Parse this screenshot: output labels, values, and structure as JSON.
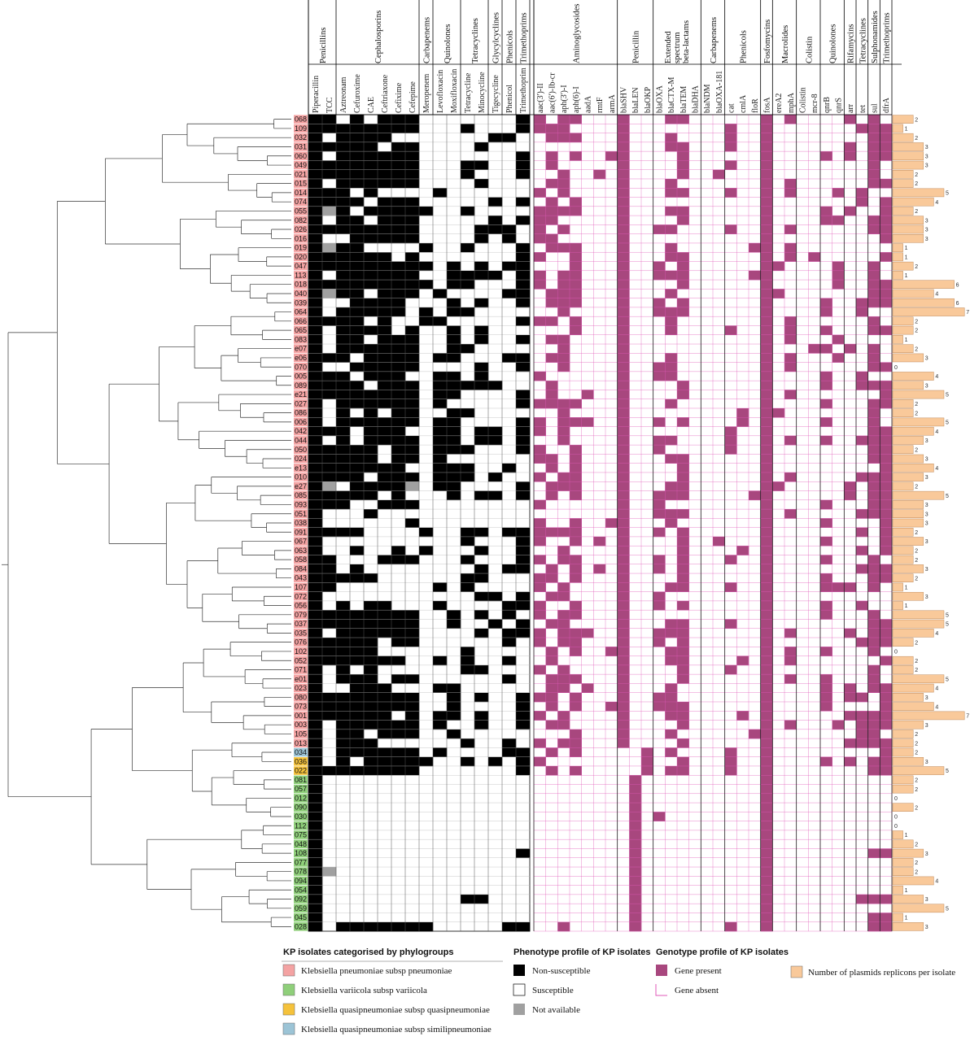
{
  "isolates": [
    {
      "id": "068",
      "group": "kp",
      "plasmids": 2
    },
    {
      "id": "109",
      "group": "kp",
      "plasmids": 1
    },
    {
      "id": "032",
      "group": "kp",
      "plasmids": 2
    },
    {
      "id": "031",
      "group": "kp",
      "plasmids": 3
    },
    {
      "id": "060",
      "group": "kp",
      "plasmids": 3
    },
    {
      "id": "049",
      "group": "kp",
      "plasmids": 3
    },
    {
      "id": "021",
      "group": "kp",
      "plasmids": 2
    },
    {
      "id": "015",
      "group": "kp",
      "plasmids": 2
    },
    {
      "id": "014",
      "group": "kp",
      "plasmids": 5
    },
    {
      "id": "074",
      "group": "kp",
      "plasmids": 4
    },
    {
      "id": "055",
      "group": "kp",
      "plasmids": 2
    },
    {
      "id": "082",
      "group": "kp",
      "plasmids": 3
    },
    {
      "id": "026",
      "group": "kp",
      "plasmids": 3
    },
    {
      "id": "016",
      "group": "kp",
      "plasmids": 3
    },
    {
      "id": "019",
      "group": "kp",
      "plasmids": 1
    },
    {
      "id": "020",
      "group": "kp",
      "plasmids": 1
    },
    {
      "id": "047",
      "group": "kp",
      "plasmids": 2
    },
    {
      "id": "113",
      "group": "kp",
      "plasmids": 1
    },
    {
      "id": "018",
      "group": "kp",
      "plasmids": 6
    },
    {
      "id": "040",
      "group": "kp",
      "plasmids": 4
    },
    {
      "id": "039",
      "group": "kp",
      "plasmids": 6
    },
    {
      "id": "064",
      "group": "kp",
      "plasmids": 7
    },
    {
      "id": "066",
      "group": "kp",
      "plasmids": 2
    },
    {
      "id": "065",
      "group": "kp",
      "plasmids": 2
    },
    {
      "id": "083",
      "group": "kp",
      "plasmids": 1
    },
    {
      "id": "e07",
      "group": "kp",
      "plasmids": 2
    },
    {
      "id": "e06",
      "group": "kp",
      "plasmids": 3
    },
    {
      "id": "070",
      "group": "kp",
      "plasmids": 0
    },
    {
      "id": "005",
      "group": "kp",
      "plasmids": 4
    },
    {
      "id": "089",
      "group": "kp",
      "plasmids": 3
    },
    {
      "id": "e21",
      "group": "kp",
      "plasmids": 5
    },
    {
      "id": "027",
      "group": "kp",
      "plasmids": 2
    },
    {
      "id": "086",
      "group": "kp",
      "plasmids": 2
    },
    {
      "id": "006",
      "group": "kp",
      "plasmids": 5
    },
    {
      "id": "042",
      "group": "kp",
      "plasmids": 4
    },
    {
      "id": "044",
      "group": "kp",
      "plasmids": 3
    },
    {
      "id": "050",
      "group": "kp",
      "plasmids": 2
    },
    {
      "id": "024",
      "group": "kp",
      "plasmids": 3
    },
    {
      "id": "e13",
      "group": "kp",
      "plasmids": 4
    },
    {
      "id": "010",
      "group": "kp",
      "plasmids": 3
    },
    {
      "id": "e27",
      "group": "kp",
      "plasmids": 2
    },
    {
      "id": "085",
      "group": "kp",
      "plasmids": 5
    },
    {
      "id": "093",
      "group": "kp",
      "plasmids": 3
    },
    {
      "id": "051",
      "group": "kp",
      "plasmids": 3
    },
    {
      "id": "038",
      "group": "kp",
      "plasmids": 3
    },
    {
      "id": "091",
      "group": "kp",
      "plasmids": 2
    },
    {
      "id": "067",
      "group": "kp",
      "plasmids": 3
    },
    {
      "id": "063",
      "group": "kp",
      "plasmids": 2
    },
    {
      "id": "058",
      "group": "kp",
      "plasmids": 2
    },
    {
      "id": "084",
      "group": "kp",
      "plasmids": 3
    },
    {
      "id": "043",
      "group": "kp",
      "plasmids": 2
    },
    {
      "id": "107",
      "group": "kp",
      "plasmids": 1
    },
    {
      "id": "072",
      "group": "kp",
      "plasmids": 3
    },
    {
      "id": "056",
      "group": "kp",
      "plasmids": 1
    },
    {
      "id": "079",
      "group": "kp",
      "plasmids": 5
    },
    {
      "id": "037",
      "group": "kp",
      "plasmids": 5
    },
    {
      "id": "035",
      "group": "kp",
      "plasmids": 4
    },
    {
      "id": "076",
      "group": "kp",
      "plasmids": 2
    },
    {
      "id": "102",
      "group": "kp",
      "plasmids": 0
    },
    {
      "id": "052",
      "group": "kp",
      "plasmids": 2
    },
    {
      "id": "071",
      "group": "kp",
      "plasmids": 2
    },
    {
      "id": "e01",
      "group": "kp",
      "plasmids": 5
    },
    {
      "id": "023",
      "group": "kp",
      "plasmids": 4
    },
    {
      "id": "080",
      "group": "kp",
      "plasmids": 3
    },
    {
      "id": "073",
      "group": "kp",
      "plasmids": 4
    },
    {
      "id": "001",
      "group": "kp",
      "plasmids": 7
    },
    {
      "id": "003",
      "group": "kp",
      "plasmids": 3
    },
    {
      "id": "105",
      "group": "kp",
      "plasmids": 2
    },
    {
      "id": "013",
      "group": "kp",
      "plasmids": 2
    },
    {
      "id": "034",
      "group": "ksim",
      "plasmids": 2
    },
    {
      "id": "036",
      "group": "kqq",
      "plasmids": 3
    },
    {
      "id": "022",
      "group": "kqq",
      "plasmids": 5
    },
    {
      "id": "081",
      "group": "kv",
      "plasmids": 2
    },
    {
      "id": "057",
      "group": "kv",
      "plasmids": 2
    },
    {
      "id": "012",
      "group": "kv",
      "plasmids": 0
    },
    {
      "id": "090",
      "group": "kv",
      "plasmids": 2
    },
    {
      "id": "030",
      "group": "kv",
      "plasmids": 0
    },
    {
      "id": "112",
      "group": "kv",
      "plasmids": 0
    },
    {
      "id": "075",
      "group": "kv",
      "plasmids": 1
    },
    {
      "id": "048",
      "group": "kv",
      "plasmids": 2
    },
    {
      "id": "108",
      "group": "kv",
      "plasmids": 3
    },
    {
      "id": "077",
      "group": "kv",
      "plasmids": 2
    },
    {
      "id": "078",
      "group": "kv",
      "plasmids": 2
    },
    {
      "id": "094",
      "group": "kv",
      "plasmids": 4
    },
    {
      "id": "054",
      "group": "kv",
      "plasmids": 1
    },
    {
      "id": "092",
      "group": "kv",
      "plasmids": 3
    },
    {
      "id": "059",
      "group": "kv",
      "plasmids": 5
    },
    {
      "id": "045",
      "group": "kv",
      "plasmids": 1
    },
    {
      "id": "028",
      "group": "kv",
      "plasmids": 3
    }
  ],
  "phenotype_columns": [
    "Piperacillin",
    "TCC",
    "Aztreonam",
    "Cefuroxime",
    "CAE",
    "Ceftriaxone",
    "Cefixime",
    "Cefepime",
    "Meropenem",
    "Levofloxacin",
    "Moxifloxacin",
    "Tetracycline",
    "Minocycline",
    "Tigecycline",
    "Phenicol",
    "Trimethoprim"
  ],
  "phenotype_groups": [
    {
      "label": "Penicillins",
      "start": 0,
      "end": 1
    },
    {
      "label": "Cephalosporins",
      "start": 2,
      "end": 7
    },
    {
      "label": "Carbapenems",
      "start": 8,
      "end": 8
    },
    {
      "label": "Quinolones",
      "start": 9,
      "end": 10
    },
    {
      "label": "Tetracyclines",
      "start": 11,
      "end": 12
    },
    {
      "label": "Glycylcyclines",
      "start": 13,
      "end": 13
    },
    {
      "label": "Phenicols",
      "start": 14,
      "end": 14
    },
    {
      "label": "Trimethoprims",
      "start": 15,
      "end": 15
    }
  ],
  "gene_columns": [
    "aac(3')-II",
    "aac(6')-Ib-cr",
    "aph(3')-I",
    "aph(6)-I",
    "aadA",
    "rmtF",
    "armA",
    "blaSHV",
    "blaLEN",
    "blaOKP",
    "blaOXA",
    "blaCTX-M",
    "blaTEM",
    "blaDHA",
    "blaNDM",
    "blaOXA-181",
    "cat",
    "cmlA",
    "floR",
    "fosA",
    "ereA2",
    "mphA",
    "Colistin",
    "mcr-8",
    "qnrB",
    "qnrS",
    "arr",
    "tet",
    "sul",
    "dfrA"
  ],
  "gene_groups": [
    {
      "label": "Aminoglycosides",
      "start": 0,
      "end": 6
    },
    {
      "label": "Penicillin",
      "start": 7,
      "end": 9
    },
    {
      "label": "Extended spectrum beta-lactams",
      "start": 10,
      "end": 13
    },
    {
      "label": "Carbapenems",
      "start": 14,
      "end": 15
    },
    {
      "label": "Phenicols",
      "start": 16,
      "end": 18
    },
    {
      "label": "Fosfomycins",
      "start": 19,
      "end": 19
    },
    {
      "label": "Macrolides",
      "start": 20,
      "end": 21
    },
    {
      "label": "Colistin",
      "start": 22,
      "end": 23
    },
    {
      "label": "Quinolones",
      "start": 24,
      "end": 25
    },
    {
      "label": "Rifamycins",
      "start": 26,
      "end": 26
    },
    {
      "label": "Tetracyclines",
      "start": 27,
      "end": 27
    },
    {
      "label": "Sulphonamides",
      "start": 28,
      "end": 28
    },
    {
      "label": "Trimethoprims",
      "start": 29,
      "end": 29
    }
  ],
  "colors": {
    "kp": "#f4a3a3",
    "kv": "#8fcf7a",
    "kqq": "#f5c23b",
    "ksim": "#9cc4d6",
    "non_susceptible": "#000000",
    "susceptible": "#ffffff",
    "not_available": "#a0a0a0",
    "gene_present": "#a8477e",
    "gene_absent_line": "#e05ab8",
    "plasmid_bar": "#f9c99a"
  },
  "legend": {
    "phylo_title": "KP isolates categorised by phylogroups",
    "phylo_items": [
      {
        "key": "kp",
        "label": "Klebsiella pneumoniae subsp pneumoniae"
      },
      {
        "key": "kv",
        "label": "Klebsiella variicola subsp variicola"
      },
      {
        "key": "kqq",
        "label": "Klebsiella quasipneumoniae subsp quasipneumoniae"
      },
      {
        "key": "ksim",
        "label": "Klebsiella quasipneumoniae subsp similipneumoniae"
      }
    ],
    "pheno_title": "Phenotype profile of KP isolates",
    "pheno_items": [
      "Non-susceptible",
      "Susceptible",
      "Not available"
    ],
    "geno_title": "Genotype profile of KP isolates",
    "geno_items": [
      "Gene present",
      "Gene absent"
    ],
    "plasmid_label": "Number of plasmids replicons per isolate"
  }
}
